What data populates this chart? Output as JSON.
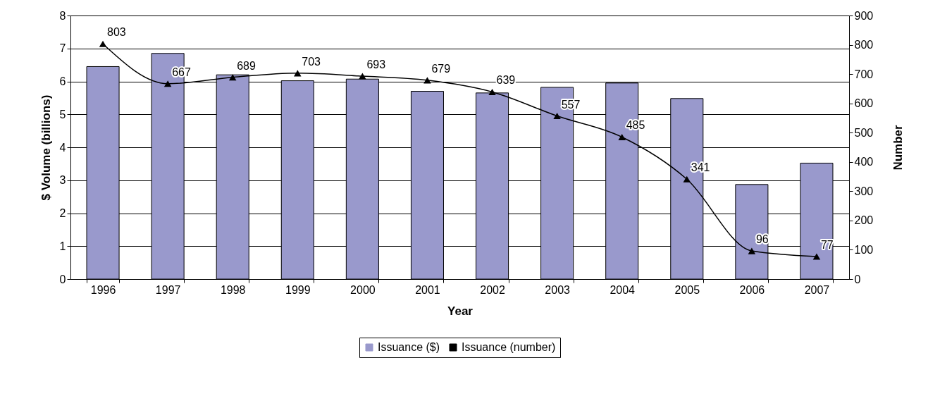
{
  "chart_data": {
    "type": "bar",
    "xlabel": "Year",
    "ylabel": "$ Volume (billions)",
    "y2label": "Number",
    "categories": [
      "1996",
      "1997",
      "1998",
      "1999",
      "2000",
      "2001",
      "2002",
      "2003",
      "2004",
      "2005",
      "2006",
      "2007"
    ],
    "series": [
      {
        "name": "Issuance ($)",
        "color": "#9999cc",
        "values": [
          6.45,
          6.85,
          6.2,
          6.02,
          6.07,
          5.7,
          5.65,
          5.82,
          5.95,
          5.48,
          2.87,
          3.52
        ]
      },
      {
        "name": "Issuance (number)",
        "type": "line",
        "axis": "y2",
        "color": "#000000",
        "marker": "triangle",
        "values": [
          803,
          667,
          689,
          703,
          693,
          679,
          639,
          557,
          485,
          341,
          96,
          77
        ],
        "value_labels": [
          "803",
          "667",
          "689",
          "703",
          "693",
          "679",
          "639",
          "557",
          "485",
          "341",
          "96",
          "77"
        ]
      }
    ],
    "ylim": [
      0,
      8
    ],
    "yticks": [
      0,
      1,
      2,
      3,
      4,
      5,
      6,
      7,
      8
    ],
    "y2lim": [
      0,
      900
    ],
    "y2ticks": [
      0,
      100,
      200,
      300,
      400,
      500,
      600,
      700,
      800,
      900
    ],
    "grid": "y",
    "legend": "bottom"
  }
}
